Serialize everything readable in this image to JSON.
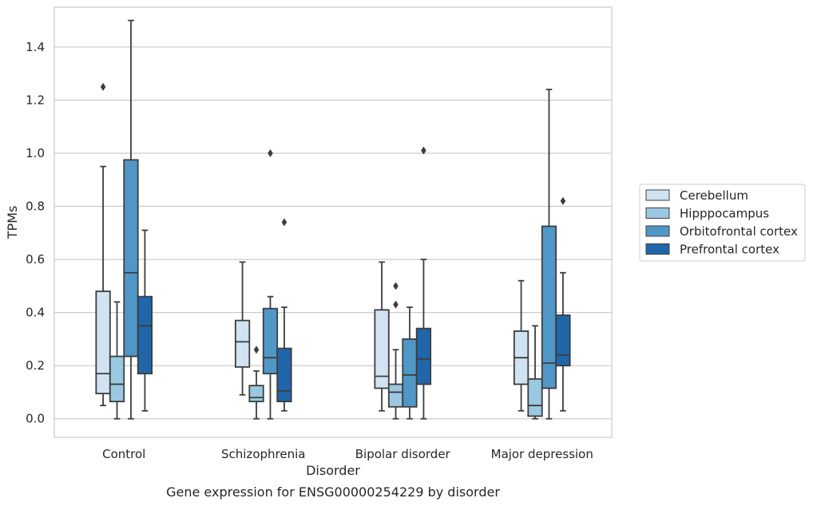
{
  "chart_data": {
    "type": "box",
    "title": "",
    "caption": "Gene expression for ENSG00000254229 by disorder",
    "xlabel": "Disorder",
    "ylabel": "TPMs",
    "ylim": [
      -0.07,
      1.55
    ],
    "yticks": [
      0.0,
      0.2,
      0.4,
      0.6,
      0.8,
      1.0,
      1.2,
      1.4
    ],
    "ytick_labels": [
      "0.0",
      "0.2",
      "0.4",
      "0.6",
      "0.8",
      "1.0",
      "1.2",
      "1.4"
    ],
    "grid": "horizontal",
    "legend_position": "right",
    "categories": [
      "Control",
      "Schizophrenia",
      "Bipolar disorder",
      "Major depression"
    ],
    "series": [
      {
        "name": "Cerebellum",
        "color": "#d1e2f2",
        "boxes": [
          {
            "whisker_low": 0.05,
            "q1": 0.095,
            "median": 0.17,
            "q3": 0.48,
            "whisker_high": 0.95,
            "outliers": [
              1.25
            ]
          },
          {
            "whisker_low": 0.09,
            "q1": 0.195,
            "median": 0.29,
            "q3": 0.37,
            "whisker_high": 0.59,
            "outliers": []
          },
          {
            "whisker_low": 0.03,
            "q1": 0.115,
            "median": 0.16,
            "q3": 0.41,
            "whisker_high": 0.59,
            "outliers": []
          },
          {
            "whisker_low": 0.03,
            "q1": 0.13,
            "median": 0.23,
            "q3": 0.33,
            "whisker_high": 0.52,
            "outliers": []
          }
        ]
      },
      {
        "name": "Hipppocampus",
        "color": "#9ac8e0",
        "boxes": [
          {
            "whisker_low": 0.0,
            "q1": 0.065,
            "median": 0.13,
            "q3": 0.235,
            "whisker_high": 0.44,
            "outliers": []
          },
          {
            "whisker_low": 0.0,
            "q1": 0.065,
            "median": 0.08,
            "q3": 0.125,
            "whisker_high": 0.18,
            "outliers": [
              0.26
            ]
          },
          {
            "whisker_low": 0.0,
            "q1": 0.045,
            "median": 0.1,
            "q3": 0.13,
            "whisker_high": 0.26,
            "outliers": [
              0.43,
              0.5
            ]
          },
          {
            "whisker_low": 0.0,
            "q1": 0.01,
            "median": 0.05,
            "q3": 0.15,
            "whisker_high": 0.35,
            "outliers": []
          }
        ]
      },
      {
        "name": "Orbitofrontal cortex",
        "color": "#5097c7",
        "boxes": [
          {
            "whisker_low": 0.0,
            "q1": 0.235,
            "median": 0.55,
            "q3": 0.975,
            "whisker_high": 1.5,
            "outliers": []
          },
          {
            "whisker_low": 0.0,
            "q1": 0.17,
            "median": 0.23,
            "q3": 0.415,
            "whisker_high": 0.46,
            "outliers": [
              1.0
            ]
          },
          {
            "whisker_low": 0.0,
            "q1": 0.045,
            "median": 0.165,
            "q3": 0.3,
            "whisker_high": 0.42,
            "outliers": []
          },
          {
            "whisker_low": 0.0,
            "q1": 0.115,
            "median": 0.21,
            "q3": 0.725,
            "whisker_high": 1.24,
            "outliers": []
          }
        ]
      },
      {
        "name": "Prefrontal cortex",
        "color": "#2166a9",
        "boxes": [
          {
            "whisker_low": 0.03,
            "q1": 0.17,
            "median": 0.35,
            "q3": 0.46,
            "whisker_high": 0.71,
            "outliers": []
          },
          {
            "whisker_low": 0.03,
            "q1": 0.065,
            "median": 0.105,
            "q3": 0.265,
            "whisker_high": 0.42,
            "outliers": [
              0.74
            ]
          },
          {
            "whisker_low": 0.0,
            "q1": 0.13,
            "median": 0.225,
            "q3": 0.34,
            "whisker_high": 0.6,
            "outliers": [
              1.01
            ]
          },
          {
            "whisker_low": 0.03,
            "q1": 0.2,
            "median": 0.24,
            "q3": 0.39,
            "whisker_high": 0.55,
            "outliers": [
              0.82
            ]
          }
        ]
      }
    ]
  }
}
